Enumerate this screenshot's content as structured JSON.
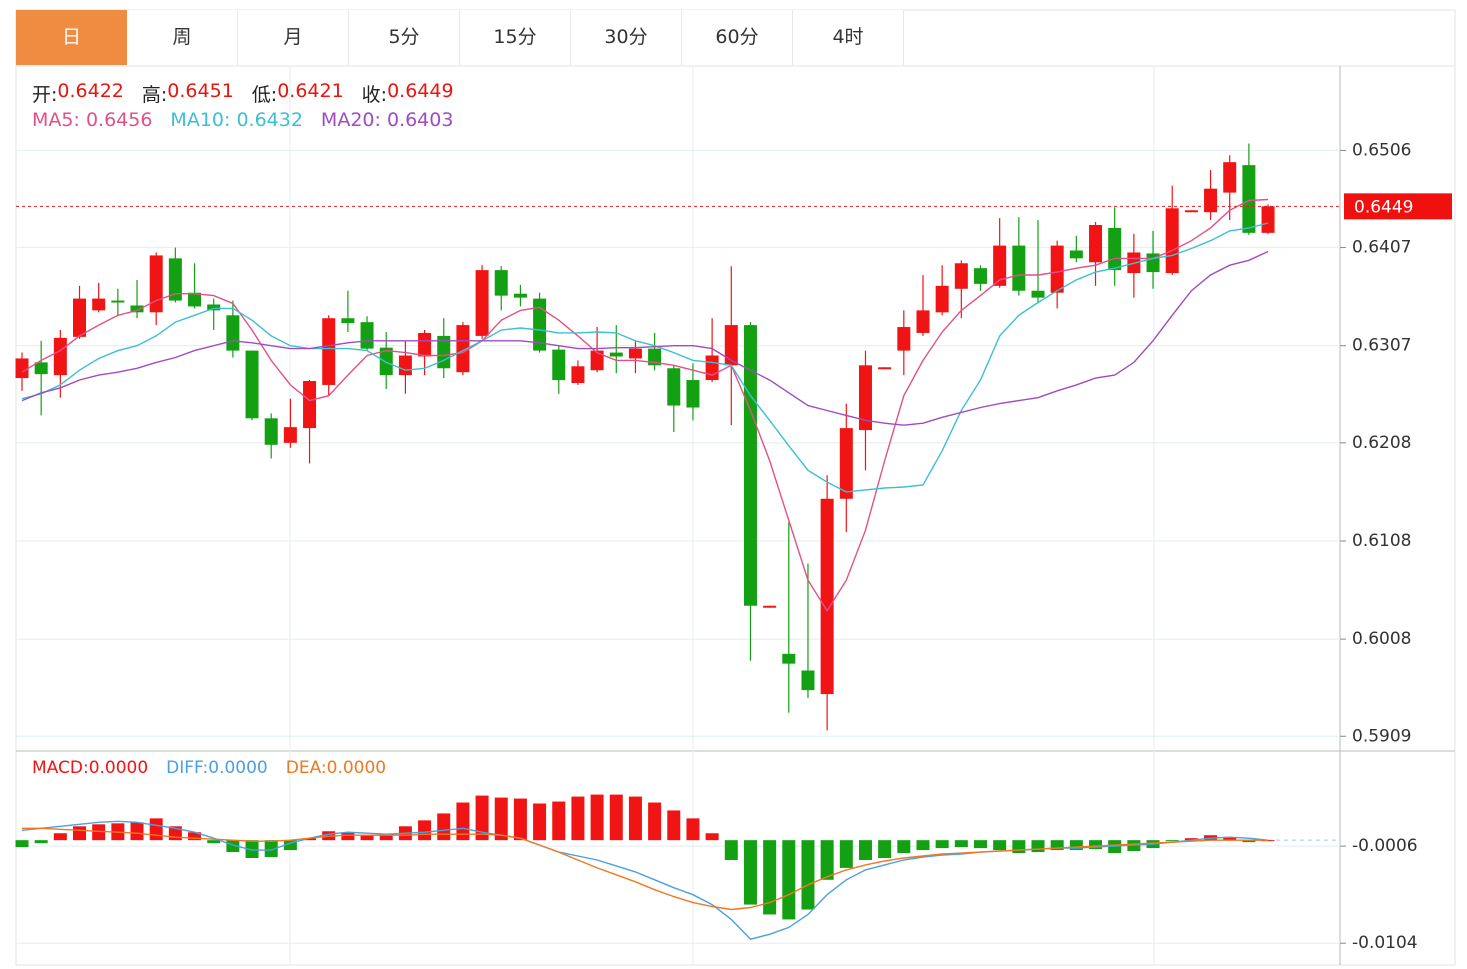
{
  "tabs": [
    "日",
    "周",
    "月",
    "5分",
    "15分",
    "30分",
    "60分",
    "4时"
  ],
  "chart_data": [
    {
      "type": "candlestick",
      "ohlc_labels": [
        "开:",
        "高:",
        "低:",
        "收:"
      ],
      "up_color": "#f01414",
      "down_color": "#13a013",
      "open": [
        0.6274,
        0.629,
        0.6277,
        0.6316,
        0.6343,
        0.6353,
        0.6348,
        0.6341,
        0.6396,
        0.6361,
        0.6349,
        0.6338,
        0.6302,
        0.6233,
        0.6208,
        0.6223,
        0.6267,
        0.6335,
        0.6331,
        0.6305,
        0.6277,
        0.6296,
        0.6317,
        0.628,
        0.6317,
        0.6384,
        0.636,
        0.6355,
        0.6303,
        0.6269,
        0.6282,
        0.63,
        0.6294,
        0.6304,
        0.6284,
        0.6272,
        0.6272,
        0.6287,
        0.6328,
        0.604,
        0.5993,
        0.5976,
        0.5952,
        0.6151,
        0.6221,
        0.6283,
        0.6302,
        0.632,
        0.6341,
        0.6365,
        0.6386,
        0.6368,
        0.6409,
        0.6363,
        0.6361,
        0.6404,
        0.6392,
        0.6427,
        0.6381,
        0.6401,
        0.6381,
        0.6443,
        0.6443,
        0.6463,
        0.6491,
        0.6422
      ],
      "high": [
        0.63,
        0.6312,
        0.6323,
        0.6368,
        0.6371,
        0.6365,
        0.6374,
        0.6402,
        0.6407,
        0.6391,
        0.6355,
        0.6353,
        0.6302,
        0.6238,
        0.6253,
        0.6272,
        0.6338,
        0.6363,
        0.6337,
        0.6321,
        0.6312,
        0.6323,
        0.6335,
        0.6331,
        0.6389,
        0.6388,
        0.6369,
        0.6361,
        0.6307,
        0.6292,
        0.6326,
        0.6328,
        0.6312,
        0.632,
        0.6287,
        0.6289,
        0.6335,
        0.6388,
        0.6331,
        0.6042,
        0.6127,
        0.6085,
        0.6175,
        0.6248,
        0.6302,
        0.6285,
        0.6343,
        0.6379,
        0.6389,
        0.6394,
        0.6389,
        0.6437,
        0.6438,
        0.6435,
        0.6414,
        0.6419,
        0.6433,
        0.6448,
        0.6421,
        0.6424,
        0.647,
        0.6445,
        0.6486,
        0.6501,
        0.6513,
        0.6451
      ],
      "low": [
        0.6261,
        0.6236,
        0.6254,
        0.6314,
        0.6341,
        0.6337,
        0.6335,
        0.6328,
        0.6351,
        0.6345,
        0.6323,
        0.6295,
        0.6231,
        0.6192,
        0.6203,
        0.6187,
        0.6256,
        0.6321,
        0.6302,
        0.6263,
        0.6258,
        0.6277,
        0.6274,
        0.6277,
        0.6314,
        0.6343,
        0.6347,
        0.63,
        0.6258,
        0.6267,
        0.628,
        0.6279,
        0.6279,
        0.6282,
        0.6219,
        0.6231,
        0.627,
        0.6226,
        0.5986,
        0.604,
        0.5933,
        0.5948,
        0.5915,
        0.6117,
        0.618,
        0.6283,
        0.6277,
        0.6317,
        0.6338,
        0.6335,
        0.6363,
        0.6366,
        0.6358,
        0.635,
        0.6345,
        0.6392,
        0.6368,
        0.6368,
        0.6356,
        0.6365,
        0.6379,
        0.6443,
        0.6435,
        0.6435,
        0.642,
        0.6421
      ],
      "close": [
        0.6294,
        0.6278,
        0.6315,
        0.6355,
        0.6355,
        0.6351,
        0.6341,
        0.6399,
        0.6353,
        0.6347,
        0.6343,
        0.6302,
        0.6233,
        0.6206,
        0.6224,
        0.6271,
        0.6335,
        0.633,
        0.6304,
        0.6277,
        0.6297,
        0.632,
        0.6284,
        0.6328,
        0.6384,
        0.6358,
        0.6356,
        0.6302,
        0.6272,
        0.6286,
        0.6302,
        0.6296,
        0.6304,
        0.6287,
        0.6246,
        0.6244,
        0.6297,
        0.6328,
        0.6042,
        0.6042,
        0.5983,
        0.5956,
        0.6151,
        0.6223,
        0.6287,
        0.6285,
        0.6326,
        0.6343,
        0.6368,
        0.6391,
        0.637,
        0.6409,
        0.6363,
        0.6356,
        0.6409,
        0.6396,
        0.643,
        0.6384,
        0.6402,
        0.6382,
        0.6447,
        0.6445,
        0.6467,
        0.6494,
        0.6422,
        0.6449
      ],
      "series": [
        {
          "name": "MA5:",
          "color": "#e2508a",
          "values": [
            0.628,
            0.6292,
            0.6302,
            0.6317,
            0.6328,
            0.6338,
            0.6343,
            0.6353,
            0.636,
            0.636,
            0.6358,
            0.635,
            0.6323,
            0.6292,
            0.6267,
            0.6251,
            0.6256,
            0.6277,
            0.6297,
            0.6302,
            0.63,
            0.6297,
            0.6297,
            0.63,
            0.6312,
            0.6333,
            0.6343,
            0.6346,
            0.6333,
            0.6317,
            0.63,
            0.6292,
            0.6292,
            0.629,
            0.6287,
            0.6282,
            0.6277,
            0.6287,
            0.6241,
            0.619,
            0.6129,
            0.6068,
            0.6037,
            0.6068,
            0.6119,
            0.619,
            0.6256,
            0.6292,
            0.6321,
            0.6343,
            0.6358,
            0.6374,
            0.6379,
            0.6379,
            0.6382,
            0.6386,
            0.6389,
            0.6396,
            0.6396,
            0.6396,
            0.6404,
            0.6414,
            0.6427,
            0.6445,
            0.6455,
            0.6456
          ]
        },
        {
          "name": "MA10:",
          "color": "#3dbfd2",
          "values": [
            0.6253,
            0.6258,
            0.6267,
            0.6282,
            0.6294,
            0.6302,
            0.6307,
            0.6317,
            0.6331,
            0.6338,
            0.6345,
            0.6345,
            0.6333,
            0.6317,
            0.6307,
            0.6304,
            0.6304,
            0.6304,
            0.6302,
            0.629,
            0.6282,
            0.6284,
            0.6292,
            0.6302,
            0.6312,
            0.6323,
            0.6325,
            0.6323,
            0.632,
            0.632,
            0.6321,
            0.632,
            0.6312,
            0.6307,
            0.63,
            0.6292,
            0.629,
            0.6287,
            0.6256,
            0.6231,
            0.6205,
            0.618,
            0.6168,
            0.6158,
            0.616,
            0.6162,
            0.6163,
            0.6165,
            0.62,
            0.6241,
            0.6272,
            0.6317,
            0.6338,
            0.6351,
            0.6363,
            0.6374,
            0.6382,
            0.6386,
            0.6391,
            0.6396,
            0.6399,
            0.6406,
            0.6414,
            0.6424,
            0.6427,
            0.6432
          ]
        },
        {
          "name": "MA20:",
          "color": "#a04cbf",
          "values": [
            0.6251,
            0.6259,
            0.6264,
            0.6272,
            0.6277,
            0.628,
            0.6284,
            0.629,
            0.6295,
            0.6302,
            0.6307,
            0.6312,
            0.631,
            0.6307,
            0.6304,
            0.6304,
            0.6307,
            0.631,
            0.6312,
            0.6312,
            0.6312,
            0.6312,
            0.6312,
            0.6312,
            0.6312,
            0.6312,
            0.6312,
            0.631,
            0.6307,
            0.6304,
            0.6304,
            0.6305,
            0.6305,
            0.6306,
            0.6307,
            0.6307,
            0.6304,
            0.6292,
            0.6282,
            0.6272,
            0.6259,
            0.6246,
            0.6241,
            0.6236,
            0.6231,
            0.6228,
            0.6226,
            0.6228,
            0.6234,
            0.6239,
            0.6244,
            0.6248,
            0.6251,
            0.6254,
            0.6261,
            0.6267,
            0.6274,
            0.6277,
            0.629,
            0.6312,
            0.6338,
            0.6363,
            0.6379,
            0.6389,
            0.6394,
            0.6403
          ]
        }
      ],
      "ylim": [
        0.5895,
        0.6591
      ],
      "yticks": [
        0.6506,
        0.6407,
        0.6307,
        0.6208,
        0.6108,
        0.6008,
        0.5909
      ],
      "grid": true
    },
    {
      "type": "macd",
      "name": "MACD:",
      "up_color": "#f01414",
      "down_color": "#13a013",
      "values": [
        -0.0007,
        -0.0003,
        0.0007,
        0.0014,
        0.0016,
        0.0017,
        0.0018,
        0.0022,
        0.0014,
        0.0008,
        -0.0003,
        -0.0012,
        -0.0018,
        -0.0017,
        -0.001,
        0.0002,
        0.0009,
        0.0008,
        0.0005,
        0.0005,
        0.0014,
        0.002,
        0.0027,
        0.0038,
        0.0045,
        0.0043,
        0.0042,
        0.0037,
        0.0039,
        0.0044,
        0.0046,
        0.0046,
        0.0044,
        0.0038,
        0.003,
        0.0022,
        0.0007,
        -0.002,
        -0.0065,
        -0.0075,
        -0.008,
        -0.007,
        -0.004,
        -0.0028,
        -0.002,
        -0.0018,
        -0.0013,
        -0.001,
        -0.0008,
        -0.0007,
        -0.0008,
        -0.001,
        -0.0013,
        -0.0012,
        -0.001,
        -0.001,
        -0.0009,
        -0.0013,
        -0.0011,
        -0.0008,
        -0.0001,
        0.0002,
        0.0005,
        0.0003,
        -0.0002,
        0
      ],
      "readout_labels": [
        "0.0000",
        "0.0000",
        "0.0000"
      ],
      "series": [
        {
          "name": "DIFF:",
          "color": "#4aa0e0",
          "values": [
            0.001,
            0.0012,
            0.0014,
            0.0016,
            0.0018,
            0.0019,
            0.0018,
            0.0015,
            0.0012,
            0.0008,
            0.0002,
            -0.0005,
            -0.001,
            -0.001,
            -0.0003,
            0.0002,
            0.0006,
            0.0008,
            0.0007,
            0.0006,
            0.0007,
            0.0008,
            0.001,
            0.0012,
            0.0008,
            0.0005,
            0.0002,
            -0.0005,
            -0.0012,
            -0.0016,
            -0.002,
            -0.0026,
            -0.0032,
            -0.004,
            -0.0048,
            -0.0055,
            -0.0065,
            -0.008,
            -0.01,
            -0.0095,
            -0.0088,
            -0.0075,
            -0.0055,
            -0.004,
            -0.003,
            -0.0025,
            -0.002,
            -0.0017,
            -0.0015,
            -0.0014,
            -0.0012,
            -0.0011,
            -0.001,
            -0.0009,
            -0.0008,
            -0.0008,
            -0.0007,
            -0.0006,
            -0.0005,
            -0.0004,
            -0.0002,
            0,
            0.0002,
            0.0003,
            0.0002,
            0
          ]
        },
        {
          "name": "DEA:",
          "color": "#f07820",
          "values": [
            0.0012,
            0.0012,
            0.0011,
            0.001,
            0.0009,
            0.0008,
            0.0007,
            0.0005,
            0.0003,
            0.0002,
            0.0001,
            0,
            -0.0001,
            -0.0001,
            0,
            0.0002,
            0.0004,
            0.0005,
            0.0005,
            0.0005,
            0.0005,
            0.0006,
            0.0006,
            0.0006,
            0.0006,
            0.0005,
            0.0002,
            -0.0005,
            -0.0012,
            -0.002,
            -0.0028,
            -0.0035,
            -0.0042,
            -0.005,
            -0.0057,
            -0.0063,
            -0.0067,
            -0.007,
            -0.0068,
            -0.0063,
            -0.0055,
            -0.0045,
            -0.0037,
            -0.003,
            -0.0025,
            -0.0021,
            -0.0018,
            -0.0016,
            -0.0014,
            -0.0013,
            -0.0012,
            -0.0011,
            -0.001,
            -0.0009,
            -0.0008,
            -0.0007,
            -0.0006,
            -0.0005,
            -0.0004,
            -0.0003,
            -0.0002,
            -0.0001,
            0,
            0,
            0,
            0
          ]
        }
      ],
      "ylim": [
        -0.0126,
        0.0089
      ],
      "yticks": [
        -0.0006,
        -0.0104
      ],
      "grid": true
    }
  ]
}
